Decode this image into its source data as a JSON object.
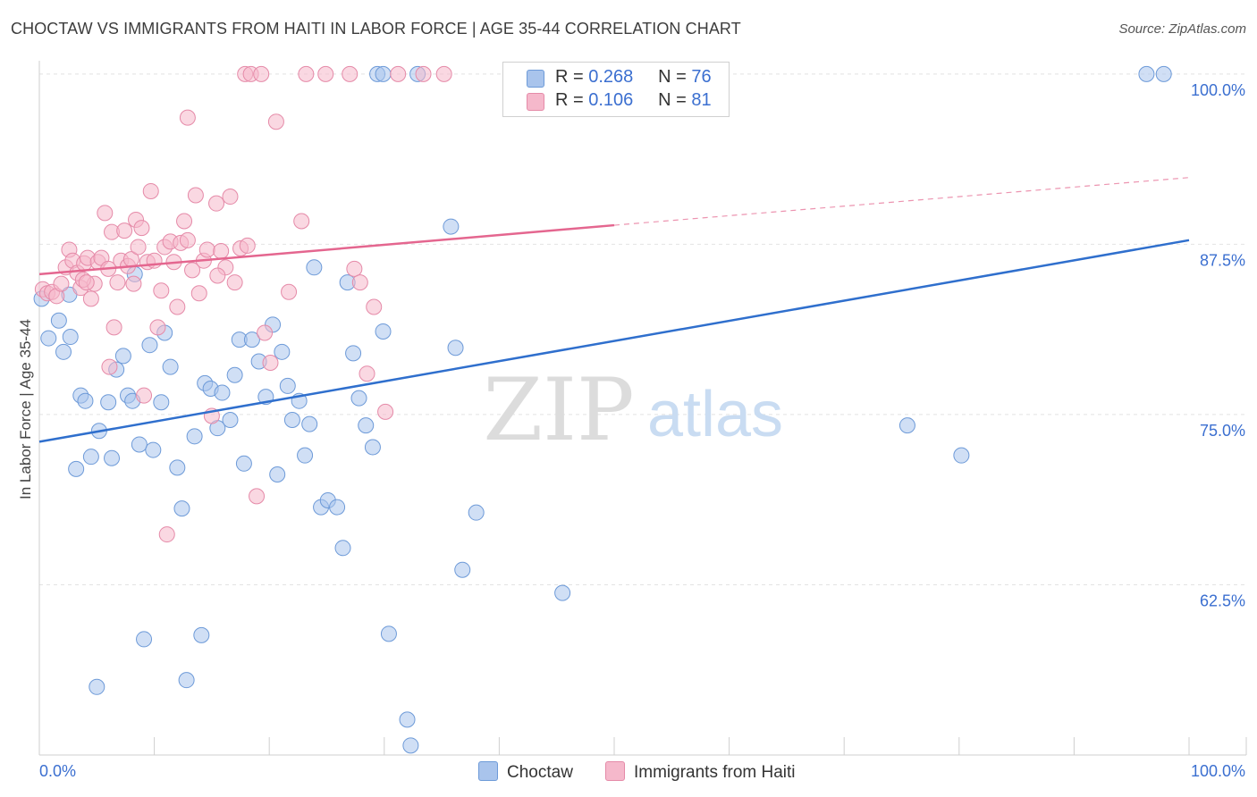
{
  "title": "CHOCTAW VS IMMIGRANTS FROM HAITI IN LABOR FORCE | AGE 35-44 CORRELATION CHART",
  "source": "Source: ZipAtlas.com",
  "watermark": {
    "zip": "ZIP",
    "atlas": "atlas"
  },
  "legend": {
    "r_label": "R =",
    "n_label": "N =",
    "rows": [
      {
        "r": "0.268",
        "n": "76",
        "color": "#a9c4ec"
      },
      {
        "r": "0.106",
        "n": "81",
        "color": "#f5b8cb"
      }
    ]
  },
  "chart_data": {
    "type": "scatter",
    "title": "CHOCTAW VS IMMIGRANTS FROM HAITI IN LABOR FORCE | AGE 35-44 CORRELATION CHART",
    "xlabel": "",
    "ylabel": "In Labor Force | Age 35-44",
    "xlim": [
      0,
      100
    ],
    "ylim": [
      50,
      101.5
    ],
    "x_tick_labels": [
      "0.0%",
      "100.0%"
    ],
    "y_ticks": [
      {
        "value": 100,
        "label": "100.0%"
      },
      {
        "value": 87.5,
        "label": "87.5%"
      },
      {
        "value": 75,
        "label": "75.0%"
      },
      {
        "value": 62.5,
        "label": "62.5%"
      }
    ],
    "series": [
      {
        "name": "Choctaw",
        "color": "#a9c4ec",
        "edge": "#6d9ad8",
        "trend": {
          "x0": 0,
          "y0": 73.0,
          "x1": 100,
          "y1": 87.8,
          "color": "#2f6fcd",
          "dashed_to": null
        },
        "points": [
          [
            0.2,
            83.5
          ],
          [
            1.7,
            81.9
          ],
          [
            0.8,
            80.6
          ],
          [
            2.1,
            79.6
          ],
          [
            2.7,
            80.7
          ],
          [
            3.2,
            71.0
          ],
          [
            3.6,
            76.4
          ],
          [
            4.0,
            76.0
          ],
          [
            4.5,
            71.9
          ],
          [
            5.2,
            73.8
          ],
          [
            6.0,
            75.9
          ],
          [
            6.3,
            71.8
          ],
          [
            6.7,
            78.3
          ],
          [
            7.3,
            79.3
          ],
          [
            7.7,
            76.4
          ],
          [
            8.1,
            76.0
          ],
          [
            8.7,
            72.8
          ],
          [
            9.1,
            58.5
          ],
          [
            9.6,
            80.1
          ],
          [
            9.9,
            72.4
          ],
          [
            10.6,
            75.9
          ],
          [
            10.9,
            81.0
          ],
          [
            11.4,
            78.5
          ],
          [
            12.0,
            71.1
          ],
          [
            12.4,
            68.1
          ],
          [
            13.5,
            73.4
          ],
          [
            14.1,
            58.8
          ],
          [
            14.4,
            77.3
          ],
          [
            14.9,
            76.9
          ],
          [
            15.5,
            74.0
          ],
          [
            15.9,
            76.6
          ],
          [
            16.6,
            74.6
          ],
          [
            17.0,
            77.9
          ],
          [
            17.4,
            80.5
          ],
          [
            17.8,
            71.4
          ],
          [
            18.5,
            80.5
          ],
          [
            19.1,
            78.9
          ],
          [
            19.7,
            76.3
          ],
          [
            20.3,
            81.6
          ],
          [
            20.7,
            70.6
          ],
          [
            21.1,
            79.6
          ],
          [
            21.6,
            77.1
          ],
          [
            22.0,
            74.6
          ],
          [
            22.6,
            76.0
          ],
          [
            23.1,
            72.0
          ],
          [
            23.5,
            74.3
          ],
          [
            23.9,
            85.8
          ],
          [
            24.5,
            68.2
          ],
          [
            25.1,
            68.7
          ],
          [
            25.9,
            68.2
          ],
          [
            26.4,
            65.2
          ],
          [
            26.8,
            84.7
          ],
          [
            27.3,
            79.5
          ],
          [
            27.8,
            76.2
          ],
          [
            28.4,
            74.2
          ],
          [
            29.0,
            72.6
          ],
          [
            29.9,
            81.1
          ],
          [
            30.4,
            58.9
          ],
          [
            32.0,
            52.6
          ],
          [
            32.3,
            50.7
          ],
          [
            35.8,
            88.8
          ],
          [
            36.2,
            79.9
          ],
          [
            36.8,
            63.6
          ],
          [
            38.0,
            67.8
          ],
          [
            45.5,
            61.9
          ],
          [
            75.5,
            74.2
          ],
          [
            80.2,
            72.0
          ],
          [
            29.4,
            100.0
          ],
          [
            29.9,
            100.0
          ],
          [
            32.9,
            100.0
          ],
          [
            96.3,
            100.0
          ],
          [
            97.8,
            100.0
          ],
          [
            5.0,
            55.0
          ],
          [
            12.8,
            55.5
          ],
          [
            2.6,
            83.8
          ],
          [
            8.3,
            85.3
          ]
        ]
      },
      {
        "name": "Immigrants from Haiti",
        "color": "#f5b8cb",
        "edge": "#e58aa8",
        "trend": {
          "x0": 0,
          "y0": 85.3,
          "x1": 50,
          "y1": 88.9,
          "color": "#e4668f",
          "dashed_to": {
            "x": 100,
            "y": 92.4
          }
        },
        "points": [
          [
            0.3,
            84.2
          ],
          [
            0.7,
            83.9
          ],
          [
            1.1,
            84.0
          ],
          [
            1.5,
            83.7
          ],
          [
            1.9,
            84.6
          ],
          [
            2.3,
            85.8
          ],
          [
            2.6,
            87.1
          ],
          [
            2.9,
            86.3
          ],
          [
            3.3,
            85.4
          ],
          [
            3.6,
            84.3
          ],
          [
            3.9,
            86.1
          ],
          [
            4.2,
            86.5
          ],
          [
            4.5,
            83.5
          ],
          [
            4.8,
            84.6
          ],
          [
            5.1,
            86.2
          ],
          [
            5.4,
            86.5
          ],
          [
            5.7,
            89.8
          ],
          [
            6.0,
            85.7
          ],
          [
            6.3,
            88.4
          ],
          [
            6.5,
            81.4
          ],
          [
            6.8,
            84.7
          ],
          [
            7.1,
            86.3
          ],
          [
            7.4,
            88.5
          ],
          [
            7.7,
            85.9
          ],
          [
            8.0,
            86.4
          ],
          [
            8.2,
            84.6
          ],
          [
            8.4,
            89.3
          ],
          [
            8.6,
            87.3
          ],
          [
            8.9,
            88.7
          ],
          [
            9.1,
            76.4
          ],
          [
            9.4,
            86.2
          ],
          [
            9.7,
            91.4
          ],
          [
            10.0,
            86.3
          ],
          [
            10.3,
            81.4
          ],
          [
            10.6,
            84.1
          ],
          [
            10.9,
            87.3
          ],
          [
            11.1,
            66.2
          ],
          [
            11.4,
            87.7
          ],
          [
            11.7,
            86.2
          ],
          [
            12.0,
            82.9
          ],
          [
            12.3,
            87.6
          ],
          [
            12.6,
            89.2
          ],
          [
            12.9,
            87.8
          ],
          [
            13.3,
            85.6
          ],
          [
            13.6,
            91.1
          ],
          [
            13.9,
            83.9
          ],
          [
            14.3,
            86.3
          ],
          [
            14.6,
            87.1
          ],
          [
            15.0,
            74.9
          ],
          [
            15.4,
            90.5
          ],
          [
            15.8,
            87.0
          ],
          [
            16.2,
            85.8
          ],
          [
            16.6,
            91.0
          ],
          [
            17.0,
            84.7
          ],
          [
            17.5,
            87.2
          ],
          [
            18.1,
            87.4
          ],
          [
            18.9,
            69.0
          ],
          [
            19.6,
            81.0
          ],
          [
            20.1,
            78.8
          ],
          [
            20.6,
            96.5
          ],
          [
            21.7,
            84.0
          ],
          [
            22.8,
            89.2
          ],
          [
            23.2,
            100.0
          ],
          [
            24.9,
            100.0
          ],
          [
            27.0,
            100.0
          ],
          [
            27.4,
            85.7
          ],
          [
            27.9,
            84.7
          ],
          [
            28.5,
            78.0
          ],
          [
            29.1,
            82.9
          ],
          [
            30.1,
            75.2
          ],
          [
            31.2,
            100.0
          ],
          [
            33.4,
            100.0
          ],
          [
            35.2,
            100.0
          ],
          [
            3.8,
            84.9
          ],
          [
            4.1,
            84.7
          ],
          [
            17.9,
            100.0
          ],
          [
            18.4,
            100.0
          ],
          [
            19.3,
            100.0
          ],
          [
            12.9,
            96.8
          ],
          [
            6.1,
            78.5
          ],
          [
            15.5,
            85.2
          ]
        ]
      }
    ]
  },
  "bottom_legend": [
    {
      "label": "Choctaw",
      "color": "#a9c4ec"
    },
    {
      "label": "Immigrants from Haiti",
      "color": "#f5b8cb"
    }
  ]
}
